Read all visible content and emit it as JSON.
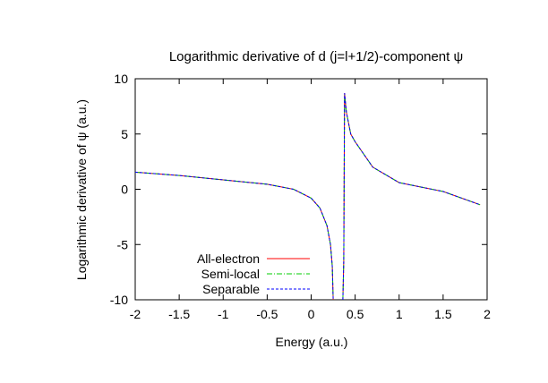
{
  "chart_data": {
    "type": "line",
    "title": "Logarithmic derivative of d (j=l+1/2)-component ψ",
    "xlabel": "Energy (a.u.)",
    "ylabel": "Logarithmic derivative of ψ (a.u.)",
    "xlim": [
      -2,
      2
    ],
    "ylim": [
      -10,
      10
    ],
    "xticks": [
      "-2",
      "-1.5",
      "-1",
      "-0.5",
      "0",
      "0.5",
      "1",
      "1.5",
      "2"
    ],
    "yticks": [
      "-10",
      "-5",
      "0",
      "5",
      "10"
    ],
    "grid": false,
    "legend_position": "bottom-left",
    "series": [
      {
        "name": "All-electron",
        "color": "#ff0000",
        "dash": "solid",
        "x": [
          -2,
          -1.5,
          -1,
          -0.5,
          -0.2,
          0,
          0.1,
          0.18,
          0.22,
          0.24,
          0.25,
          null,
          0.36,
          0.37,
          0.38,
          0.4,
          0.45,
          0.5,
          0.7,
          1.0,
          1.5,
          1.92
        ],
        "y": [
          1.55,
          1.25,
          0.85,
          0.45,
          0,
          -0.8,
          -1.7,
          -3.3,
          -5,
          -7,
          -10,
          null,
          -10,
          -6.5,
          8.7,
          7,
          5,
          4.3,
          2,
          0.6,
          -0.2,
          -1.4
        ]
      },
      {
        "name": "Semi-local",
        "color": "#00cc00",
        "dash": "dashdot",
        "x": [
          -2,
          -1.5,
          -1,
          -0.5,
          -0.2,
          0,
          0.1,
          0.18,
          0.22,
          0.24,
          0.25,
          null,
          0.36,
          0.37,
          0.38,
          0.4,
          0.45,
          0.5,
          0.7,
          1.0,
          1.5,
          1.92
        ],
        "y": [
          1.55,
          1.25,
          0.85,
          0.45,
          0,
          -0.8,
          -1.7,
          -3.3,
          -5,
          -7,
          -10,
          null,
          -10,
          -6.5,
          8.5,
          7,
          5,
          4.3,
          2,
          0.6,
          -0.2,
          -1.4
        ]
      },
      {
        "name": "Separable",
        "color": "#0000ff",
        "dash": "dashed",
        "x": [
          -2,
          -1.5,
          -1,
          -0.5,
          -0.2,
          0,
          0.1,
          0.18,
          0.22,
          0.24,
          0.25,
          null,
          0.36,
          0.37,
          0.38,
          0.4,
          0.45,
          0.5,
          0.7,
          1.0,
          1.5,
          1.92
        ],
        "y": [
          1.55,
          1.25,
          0.85,
          0.45,
          0,
          -0.8,
          -1.7,
          -3.3,
          -5,
          -7,
          -10,
          null,
          -10,
          -6.5,
          8.7,
          7,
          5,
          4.3,
          2,
          0.6,
          -0.2,
          -1.4
        ]
      }
    ]
  }
}
